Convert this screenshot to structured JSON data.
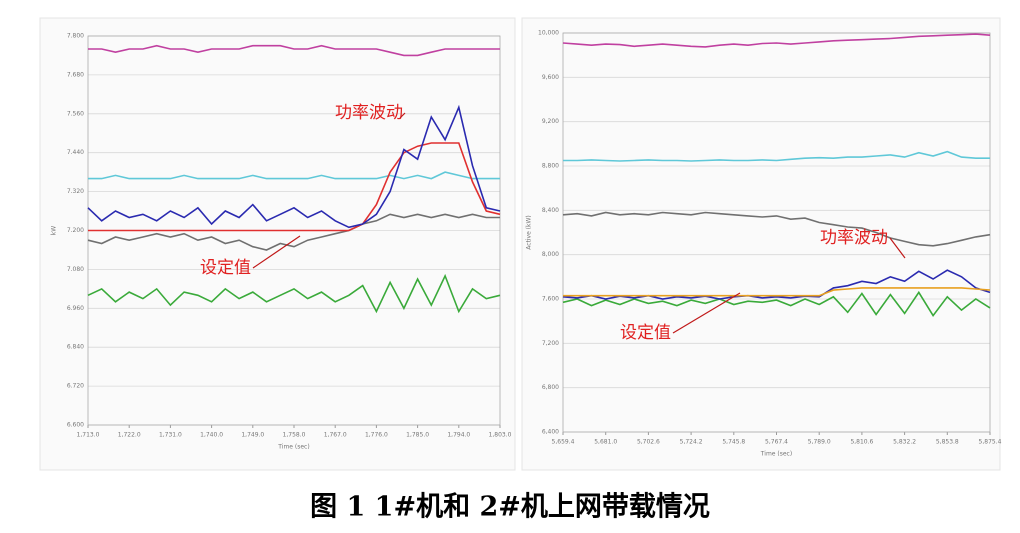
{
  "chart_data": [
    {
      "type": "line",
      "y_label": "kW",
      "x_label": "Time (sec)",
      "x": [
        1713,
        1716,
        1719,
        1722,
        1725,
        1728,
        1731,
        1734,
        1737,
        1740,
        1743,
        1746,
        1749,
        1752,
        1755,
        1758,
        1761,
        1764,
        1767,
        1770,
        1773,
        1776,
        1779,
        1782,
        1785,
        1788,
        1791,
        1794,
        1797,
        1800,
        1803
      ],
      "xlim": [
        1713,
        1803
      ],
      "xticks": [
        {
          "value": 1713,
          "label": "1,713.0"
        },
        {
          "value": 1722,
          "label": "1,722.0"
        },
        {
          "value": 1731,
          "label": "1,731.0"
        },
        {
          "value": 1740,
          "label": "1,740.0"
        },
        {
          "value": 1749,
          "label": "1,749.0"
        },
        {
          "value": 1758,
          "label": "1,758.0"
        },
        {
          "value": 1767,
          "label": "1,767.0"
        },
        {
          "value": 1776,
          "label": "1,776.0"
        },
        {
          "value": 1785,
          "label": "1,785.0"
        },
        {
          "value": 1794,
          "label": "1,794.0"
        },
        {
          "value": 1803,
          "label": "1,803.0"
        }
      ],
      "ylim": [
        6.6,
        7.8
      ],
      "yticks": [
        {
          "value": 7.8,
          "label": "7.800"
        },
        {
          "value": 7.68,
          "label": "7.680"
        },
        {
          "value": 7.56,
          "label": "7.560"
        },
        {
          "value": 7.44,
          "label": "7.440"
        },
        {
          "value": 7.32,
          "label": "7.320"
        },
        {
          "value": 7.2,
          "label": "7.200"
        },
        {
          "value": 7.08,
          "label": "7.080"
        },
        {
          "value": 6.96,
          "label": "6.960"
        },
        {
          "value": 6.84,
          "label": "6.840"
        },
        {
          "value": 6.72,
          "label": "6.720"
        },
        {
          "value": 6.6,
          "label": "6.600"
        }
      ],
      "grid": true,
      "series": [
        {
          "color": "#c040a0",
          "values": [
            7.76,
            7.76,
            7.75,
            7.76,
            7.76,
            7.77,
            7.76,
            7.76,
            7.75,
            7.76,
            7.76,
            7.76,
            7.77,
            7.77,
            7.77,
            7.76,
            7.76,
            7.77,
            7.76,
            7.76,
            7.76,
            7.76,
            7.75,
            7.74,
            7.74,
            7.75,
            7.76,
            7.76,
            7.76,
            7.76,
            7.76
          ]
        },
        {
          "color": "#5fc8d8",
          "values": [
            7.36,
            7.36,
            7.37,
            7.36,
            7.36,
            7.36,
            7.36,
            7.37,
            7.36,
            7.36,
            7.36,
            7.36,
            7.37,
            7.36,
            7.36,
            7.36,
            7.36,
            7.37,
            7.36,
            7.36,
            7.36,
            7.36,
            7.37,
            7.36,
            7.37,
            7.36,
            7.38,
            7.37,
            7.36,
            7.36,
            7.36
          ]
        },
        {
          "color": "#707070",
          "values": [
            7.17,
            7.16,
            7.18,
            7.17,
            7.18,
            7.19,
            7.18,
            7.19,
            7.17,
            7.18,
            7.16,
            7.17,
            7.15,
            7.14,
            7.16,
            7.15,
            7.17,
            7.18,
            7.19,
            7.2,
            7.22,
            7.23,
            7.25,
            7.24,
            7.25,
            7.24,
            7.25,
            7.24,
            7.25,
            7.24,
            7.24
          ]
        },
        {
          "color": "#e03030",
          "values": [
            7.2,
            7.2,
            7.2,
            7.2,
            7.2,
            7.2,
            7.2,
            7.2,
            7.2,
            7.2,
            7.2,
            7.2,
            7.2,
            7.2,
            7.2,
            7.2,
            7.2,
            7.2,
            7.2,
            7.2,
            7.22,
            7.28,
            7.38,
            7.44,
            7.46,
            7.47,
            7.47,
            7.47,
            7.35,
            7.26,
            7.25
          ]
        },
        {
          "color": "#2a2ab0",
          "values": [
            7.27,
            7.23,
            7.26,
            7.24,
            7.25,
            7.23,
            7.26,
            7.24,
            7.27,
            7.22,
            7.26,
            7.24,
            7.28,
            7.23,
            7.25,
            7.27,
            7.24,
            7.26,
            7.23,
            7.21,
            7.22,
            7.25,
            7.32,
            7.45,
            7.42,
            7.55,
            7.48,
            7.58,
            7.4,
            7.27,
            7.26
          ]
        },
        {
          "color": "#3aaa3a",
          "values": [
            7.0,
            7.02,
            6.98,
            7.01,
            6.99,
            7.02,
            6.97,
            7.01,
            7.0,
            6.98,
            7.02,
            6.99,
            7.01,
            6.98,
            7.0,
            7.02,
            6.99,
            7.01,
            6.98,
            7.0,
            7.03,
            6.95,
            7.04,
            6.96,
            7.05,
            6.97,
            7.06,
            6.95,
            7.02,
            6.99,
            7.0
          ]
        }
      ],
      "annotations": [
        "功率波动",
        "设定值"
      ]
    },
    {
      "type": "line",
      "y_label": "Active (kW)",
      "x_label": "Time (sec)",
      "x": [
        5659.4,
        5666.6,
        5673.8,
        5681,
        5688.2,
        5695.4,
        5702.6,
        5709.8,
        5717,
        5724.2,
        5731.4,
        5738.6,
        5745.8,
        5753,
        5760.2,
        5767.4,
        5774.6,
        5781.8,
        5789,
        5796.2,
        5803.4,
        5810.6,
        5817.8,
        5825,
        5832.2,
        5839.4,
        5846.6,
        5853.8,
        5861,
        5868.2,
        5875.4
      ],
      "xlim": [
        5659.4,
        5875.4
      ],
      "xticks": [
        {
          "value": 5659.4,
          "label": "5,659.4"
        },
        {
          "value": 5681,
          "label": "5,681.0"
        },
        {
          "value": 5702.6,
          "label": "5,702.6"
        },
        {
          "value": 5724.2,
          "label": "5,724.2"
        },
        {
          "value": 5745.8,
          "label": "5,745.8"
        },
        {
          "value": 5767.4,
          "label": "5,767.4"
        },
        {
          "value": 5789,
          "label": "5,789.0"
        },
        {
          "value": 5810.6,
          "label": "5,810.6"
        },
        {
          "value": 5832.2,
          "label": "5,832.2"
        },
        {
          "value": 5853.8,
          "label": "5,853.8"
        },
        {
          "value": 5875.4,
          "label": "5,875.4"
        }
      ],
      "ylim": [
        6400,
        10000
      ],
      "yticks": [
        {
          "value": 10000,
          "label": "10,000"
        },
        {
          "value": 9600,
          "label": "9,600"
        },
        {
          "value": 9200,
          "label": "9,200"
        },
        {
          "value": 8800,
          "label": "8,800"
        },
        {
          "value": 8400,
          "label": "8,400"
        },
        {
          "value": 8000,
          "label": "8,000"
        },
        {
          "value": 7600,
          "label": "7,600"
        },
        {
          "value": 7200,
          "label": "7,200"
        },
        {
          "value": 6800,
          "label": "6,800"
        },
        {
          "value": 6400,
          "label": "6,400"
        }
      ],
      "grid": true,
      "series": [
        {
          "color": "#c040a0",
          "values": [
            9910,
            9900,
            9890,
            9900,
            9895,
            9880,
            9890,
            9900,
            9890,
            9880,
            9875,
            9890,
            9900,
            9890,
            9905,
            9910,
            9900,
            9910,
            9920,
            9930,
            9935,
            9940,
            9945,
            9950,
            9960,
            9970,
            9975,
            9980,
            9985,
            9990,
            9980
          ]
        },
        {
          "color": "#5fc8d8",
          "values": [
            8850,
            8850,
            8855,
            8850,
            8845,
            8850,
            8855,
            8850,
            8850,
            8845,
            8850,
            8855,
            8850,
            8850,
            8855,
            8850,
            8860,
            8870,
            8875,
            8870,
            8880,
            8880,
            8890,
            8900,
            8880,
            8920,
            8890,
            8930,
            8880,
            8870,
            8870
          ]
        },
        {
          "color": "#707070",
          "values": [
            8360,
            8370,
            8350,
            8380,
            8360,
            8370,
            8360,
            8380,
            8370,
            8360,
            8380,
            8370,
            8360,
            8350,
            8340,
            8350,
            8320,
            8330,
            8290,
            8270,
            8250,
            8240,
            8200,
            8150,
            8120,
            8090,
            8080,
            8100,
            8130,
            8160,
            8180
          ]
        },
        {
          "color": "#3aaa3a",
          "values": [
            7570,
            7600,
            7540,
            7590,
            7550,
            7600,
            7560,
            7580,
            7540,
            7590,
            7560,
            7600,
            7550,
            7580,
            7570,
            7590,
            7540,
            7600,
            7550,
            7620,
            7480,
            7650,
            7460,
            7640,
            7470,
            7660,
            7450,
            7620,
            7500,
            7600,
            7520
          ]
        },
        {
          "color": "#2a2ab0",
          "values": [
            7620,
            7610,
            7630,
            7600,
            7625,
            7610,
            7630,
            7600,
            7620,
            7610,
            7625,
            7600,
            7620,
            7630,
            7610,
            7620,
            7610,
            7625,
            7620,
            7700,
            7720,
            7760,
            7740,
            7800,
            7760,
            7850,
            7780,
            7860,
            7800,
            7700,
            7660
          ]
        },
        {
          "color": "#e8a020",
          "values": [
            7630,
            7630,
            7630,
            7630,
            7630,
            7630,
            7630,
            7630,
            7630,
            7630,
            7630,
            7630,
            7630,
            7630,
            7630,
            7630,
            7630,
            7630,
            7630,
            7680,
            7690,
            7700,
            7700,
            7700,
            7700,
            7700,
            7700,
            7700,
            7700,
            7690,
            7680
          ]
        }
      ],
      "annotations": [
        "功率波动",
        "设定值"
      ]
    }
  ],
  "caption": "图 1  1#机和 2#机上网带载情况"
}
